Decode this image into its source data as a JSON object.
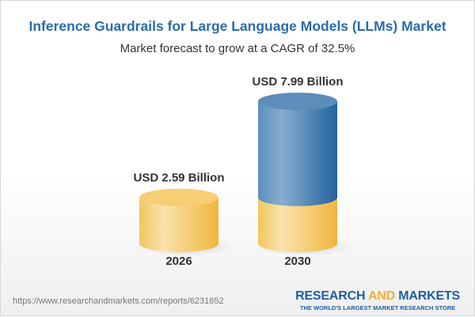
{
  "title": "Inference Guardrails for Large Language Models (LLMs) Market",
  "subtitle": "Market forecast to grow at a CAGR of 32.5%",
  "chart_data": {
    "type": "bar",
    "style": "3d-cylinder",
    "categories": [
      "2026",
      "2030"
    ],
    "values": [
      2.59,
      7.99
    ],
    "data_labels": [
      "USD 2.59 Billion",
      "USD 7.99 Billion"
    ],
    "unit": "USD Billion",
    "colors": {
      "base": "#f3c463",
      "growth": "#3f7db5"
    }
  },
  "footer": {
    "url": "https://www.researchandmarkets.com/reports/6231652",
    "logo_part1": "RESEARCH ",
    "logo_part2": "AND",
    "logo_part3": " MARKETS",
    "tagline": "THE WORLD'S LARGEST MARKET RESEARCH STORE"
  }
}
